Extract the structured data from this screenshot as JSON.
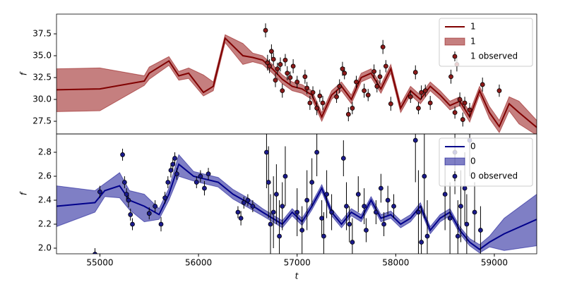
{
  "chart_data": [
    {
      "type": "line",
      "ylabel": "f",
      "legend": "upper right",
      "xlim": [
        54560,
        59430
      ],
      "ylim": [
        26.05,
        39.76
      ],
      "yticks": [
        27.5,
        {
          "value": 30,
          "label": "30.0"
        },
        32.5,
        {
          "value": 35,
          "label": "35.0"
        },
        37.5
      ],
      "x": [
        54560,
        55000,
        55450,
        55500,
        55700,
        55800,
        55900,
        56050,
        56150,
        56270,
        56450,
        56550,
        56650,
        56750,
        56850,
        56950,
        57050,
        57150,
        57250,
        57350,
        57450,
        57550,
        57650,
        57750,
        57850,
        57950,
        58050,
        58150,
        58250,
        58350,
        58450,
        58550,
        58650,
        58750,
        58850,
        58950,
        59050,
        59150,
        59250,
        59430
      ],
      "series": [
        {
          "name": "1",
          "color": "#800000",
          "values": [
            31.1,
            31.2,
            32.1,
            33.0,
            34.4,
            32.7,
            33.0,
            30.8,
            31.5,
            37.0,
            35.0,
            34.8,
            34.5,
            33.5,
            32.3,
            31.5,
            31.2,
            30.5,
            28.0,
            30.5,
            31.5,
            30.0,
            32.5,
            33.0,
            31.2,
            33.5,
            29.0,
            31.0,
            30.0,
            31.5,
            30.5,
            29.3,
            29.8,
            28.0,
            31.0,
            28.5,
            26.9,
            29.5,
            28.5,
            26.8
          ]
        },
        {
          "name": "1",
          "color": "#8b0000",
          "alpha": 0.5,
          "lower": [
            28.6,
            28.7,
            31.6,
            32.3,
            33.9,
            32.2,
            32.4,
            30.4,
            31.0,
            36.5,
            34.0,
            34.3,
            34.0,
            33.0,
            31.8,
            31.0,
            30.7,
            30.0,
            27.5,
            30.0,
            31.0,
            29.5,
            32.0,
            32.5,
            30.7,
            33.0,
            28.5,
            30.5,
            29.5,
            31.0,
            30.0,
            28.8,
            29.3,
            27.4,
            30.5,
            27.8,
            26.2,
            28.7,
            27.2,
            25.9
          ],
          "upper": [
            33.5,
            33.6,
            32.7,
            33.7,
            34.9,
            33.2,
            33.6,
            32.8,
            32.0,
            37.4,
            36.4,
            35.3,
            35.0,
            34.0,
            32.8,
            32.0,
            31.7,
            31.0,
            28.5,
            31.0,
            32.0,
            30.5,
            33.0,
            33.5,
            31.7,
            34.0,
            29.5,
            31.5,
            30.5,
            32.0,
            31.0,
            29.8,
            30.3,
            28.6,
            31.5,
            29.2,
            27.6,
            30.3,
            29.8,
            27.6
          ]
        },
        {
          "name": "1 observed",
          "color": "#8b1a1a",
          "x": [
            56680,
            56700,
            56720,
            56740,
            56760,
            56780,
            56800,
            56830,
            56850,
            56880,
            56900,
            56930,
            56960,
            57000,
            57080,
            57100,
            57130,
            57160,
            57200,
            57230,
            57260,
            57400,
            57430,
            57460,
            57480,
            57520,
            57560,
            57600,
            57680,
            57720,
            57780,
            57810,
            57840,
            57870,
            57900,
            57950,
            58150,
            58200,
            58230,
            58260,
            58300,
            58350,
            58560,
            58600,
            58620,
            58650,
            58680,
            58700,
            58750,
            58880,
            59050
          ],
          "values": [
            37.9,
            34.2,
            33.8,
            35.5,
            34.6,
            32.2,
            33.5,
            34.0,
            31.0,
            34.5,
            33.0,
            32.5,
            33.8,
            32.0,
            32.6,
            31.3,
            29.6,
            30.8,
            29.0,
            30.4,
            29.6,
            30.3,
            31.5,
            33.5,
            33.0,
            28.3,
            29.0,
            32.0,
            31.0,
            30.5,
            33.2,
            31.5,
            32.6,
            36.0,
            33.8,
            29.5,
            30.3,
            33.1,
            29.0,
            30.8,
            31.0,
            29.6,
            32.6,
            28.5,
            34.0,
            30.0,
            27.7,
            29.6,
            28.8,
            31.7,
            31.0
          ],
          "errors": [
            0.8,
            0.9,
            0.8,
            0.8,
            0.7,
            0.8,
            0.7,
            0.8,
            0.8,
            0.7,
            0.8,
            0.7,
            0.8,
            0.7,
            0.8,
            0.7,
            0.8,
            0.7,
            0.8,
            0.7,
            0.8,
            0.7,
            0.8,
            0.8,
            0.7,
            0.8,
            0.7,
            0.7,
            0.8,
            0.7,
            0.8,
            0.7,
            0.8,
            0.8,
            0.7,
            0.8,
            0.7,
            0.8,
            0.7,
            0.8,
            0.7,
            0.8,
            0.8,
            0.7,
            0.8,
            0.8,
            0.8,
            0.7,
            0.8,
            0.8,
            0.7
          ]
        }
      ]
    },
    {
      "type": "line",
      "ylabel": "f",
      "xlabel": "t",
      "legend": "upper right",
      "xlim": [
        54560,
        59430
      ],
      "ylim": [
        1.953,
        2.953
      ],
      "xticks": [
        55000,
        56000,
        57000,
        58000,
        59000
      ],
      "yticks": [
        {
          "value": 2,
          "label": "2.0"
        },
        2.2,
        2.4,
        2.6,
        2.8
      ],
      "x": [
        54560,
        54950,
        55050,
        55200,
        55300,
        55450,
        55600,
        55700,
        55800,
        55950,
        56050,
        56200,
        56350,
        56500,
        56650,
        56750,
        56850,
        56950,
        57050,
        57150,
        57250,
        57350,
        57450,
        57550,
        57650,
        57750,
        57850,
        57950,
        58050,
        58150,
        58250,
        58350,
        58450,
        58550,
        58650,
        58750,
        58850,
        58950,
        59100,
        59430
      ],
      "series": [
        {
          "name": "0",
          "color": "#00008b",
          "values": [
            2.35,
            2.38,
            2.48,
            2.52,
            2.4,
            2.35,
            2.28,
            2.45,
            2.7,
            2.6,
            2.58,
            2.55,
            2.45,
            2.38,
            2.3,
            2.25,
            2.2,
            2.3,
            2.22,
            2.35,
            2.5,
            2.3,
            2.2,
            2.3,
            2.25,
            2.4,
            2.25,
            2.28,
            2.2,
            2.25,
            2.35,
            2.15,
            2.25,
            2.3,
            2.15,
            2.05,
            1.99,
            2.05,
            2.12,
            2.24
          ]
        },
        {
          "name": "0",
          "color": "#00008b",
          "alpha": 0.5,
          "lower": [
            2.18,
            2.3,
            2.43,
            2.42,
            2.32,
            2.22,
            2.24,
            2.4,
            2.6,
            2.56,
            2.54,
            2.51,
            2.41,
            2.34,
            2.27,
            2.22,
            2.17,
            2.27,
            2.19,
            2.32,
            2.47,
            2.27,
            2.17,
            2.27,
            2.22,
            2.37,
            2.22,
            2.25,
            2.17,
            2.22,
            2.32,
            2.12,
            2.22,
            2.27,
            2.12,
            2.02,
            1.96,
            2.01,
            1.98,
            2.02
          ],
          "upper": [
            2.52,
            2.48,
            2.54,
            2.63,
            2.48,
            2.45,
            2.33,
            2.5,
            2.78,
            2.64,
            2.62,
            2.59,
            2.49,
            2.42,
            2.33,
            2.28,
            2.23,
            2.33,
            2.25,
            2.38,
            2.53,
            2.33,
            2.23,
            2.33,
            2.28,
            2.43,
            2.28,
            2.31,
            2.23,
            2.28,
            2.38,
            2.18,
            2.28,
            2.33,
            2.18,
            2.08,
            2.03,
            2.1,
            2.25,
            2.45
          ]
        },
        {
          "name": "0 observed",
          "color": "#1a1a8b",
          "x": [
            54950,
            55000,
            55230,
            55250,
            55270,
            55290,
            55310,
            55330,
            55500,
            55560,
            55620,
            55660,
            55690,
            55720,
            55740,
            55760,
            55780,
            55980,
            56020,
            56060,
            56100,
            56400,
            56430,
            56460,
            56500,
            56550,
            56690,
            56710,
            56730,
            56760,
            56790,
            56820,
            56850,
            56880,
            57000,
            57050,
            57100,
            57150,
            57200,
            57250,
            57270,
            57300,
            57350,
            57470,
            57500,
            57530,
            57560,
            57620,
            57680,
            57700,
            57800,
            57850,
            57880,
            57920,
            57980,
            58200,
            58230,
            58260,
            58290,
            58320,
            58500,
            58550,
            58600,
            58630,
            58660,
            58700,
            58720,
            58750,
            58800,
            58860
          ],
          "values": [
            1.95,
            2.47,
            2.78,
            2.55,
            2.45,
            2.4,
            2.28,
            2.2,
            2.29,
            2.35,
            2.2,
            2.42,
            2.55,
            2.65,
            2.7,
            2.75,
            2.62,
            2.55,
            2.6,
            2.5,
            2.62,
            2.3,
            2.25,
            2.38,
            2.4,
            2.35,
            2.8,
            2.55,
            2.2,
            2.3,
            2.45,
            2.1,
            2.35,
            2.6,
            2.3,
            2.15,
            2.4,
            2.55,
            2.8,
            2.25,
            2.1,
            2.45,
            2.3,
            2.75,
            2.35,
            2.2,
            2.05,
            2.45,
            2.35,
            2.15,
            2.3,
            2.5,
            2.2,
            2.4,
            2.35,
            2.9,
            2.3,
            2.05,
            2.6,
            2.1,
            2.45,
            2.25,
            2.8,
            2.1,
            2.35,
            2.5,
            2.2,
            2.9,
            2.3,
            2.15
          ],
          "errors": [
            0.05,
            0.05,
            0.05,
            0.05,
            0.05,
            0.06,
            0.05,
            0.05,
            0.05,
            0.05,
            0.06,
            0.05,
            0.05,
            0.06,
            0.05,
            0.05,
            0.05,
            0.05,
            0.05,
            0.06,
            0.05,
            0.05,
            0.06,
            0.05,
            0.05,
            0.05,
            0.3,
            0.3,
            0.25,
            0.3,
            0.25,
            0.3,
            0.2,
            0.25,
            0.2,
            0.2,
            0.25,
            0.2,
            0.2,
            0.15,
            0.2,
            0.2,
            0.15,
            0.15,
            0.2,
            0.15,
            0.2,
            0.15,
            0.15,
            0.1,
            0.1,
            0.12,
            0.1,
            0.12,
            0.1,
            0.35,
            0.35,
            0.3,
            0.35,
            0.3,
            0.3,
            0.3,
            0.35,
            0.3,
            0.3,
            0.3,
            0.25,
            0.3,
            0.25,
            0.2
          ]
        }
      ]
    }
  ]
}
